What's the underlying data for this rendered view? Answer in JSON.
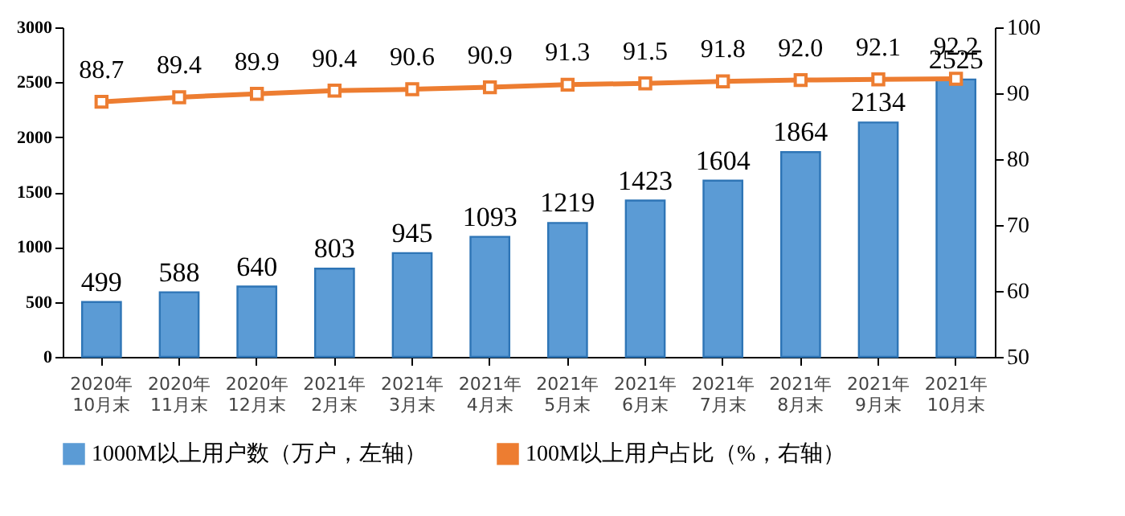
{
  "chart_data": {
    "type": "bar",
    "categories": [
      "2020年\n10月末",
      "2020年\n11月末",
      "2020年\n12月末",
      "2021年\n2月末",
      "2021年\n3月末",
      "2021年\n4月末",
      "2021年\n5月末",
      "2021年\n6月末",
      "2021年\n7月末",
      "2021年\n8月末",
      "2021年\n9月末",
      "2021年\n10月末"
    ],
    "series": [
      {
        "name": "1000M以上用户数（万户，左轴）",
        "color": "#5b9bd5",
        "values": [
          499,
          588,
          640,
          803,
          945,
          1093,
          1219,
          1423,
          1604,
          1864,
          2134,
          2525
        ]
      },
      {
        "name": "100M以上用户占比（%，右轴）",
        "type": "line",
        "axis": "y2",
        "color": "#ed7d31",
        "marker": "square",
        "values": [
          88.7,
          89.4,
          89.9,
          90.4,
          90.6,
          90.9,
          91.3,
          91.5,
          91.8,
          92.0,
          92.1,
          92.2
        ],
        "value_labels": [
          "88.7",
          "89.4",
          "89.9",
          "90.4",
          "90.6",
          "90.9",
          "91.3",
          "91.5",
          "91.8",
          "92.0",
          "92.1",
          "92.2"
        ]
      }
    ],
    "ylim": [
      0,
      3000
    ],
    "yticks": [
      0,
      500,
      1000,
      1500,
      2000,
      2500,
      3000
    ],
    "y2lim": [
      50,
      100
    ],
    "y2ticks": [
      50,
      60,
      70,
      80,
      90,
      100
    ],
    "data_labels": true,
    "grid": false,
    "legend": "bottom"
  }
}
